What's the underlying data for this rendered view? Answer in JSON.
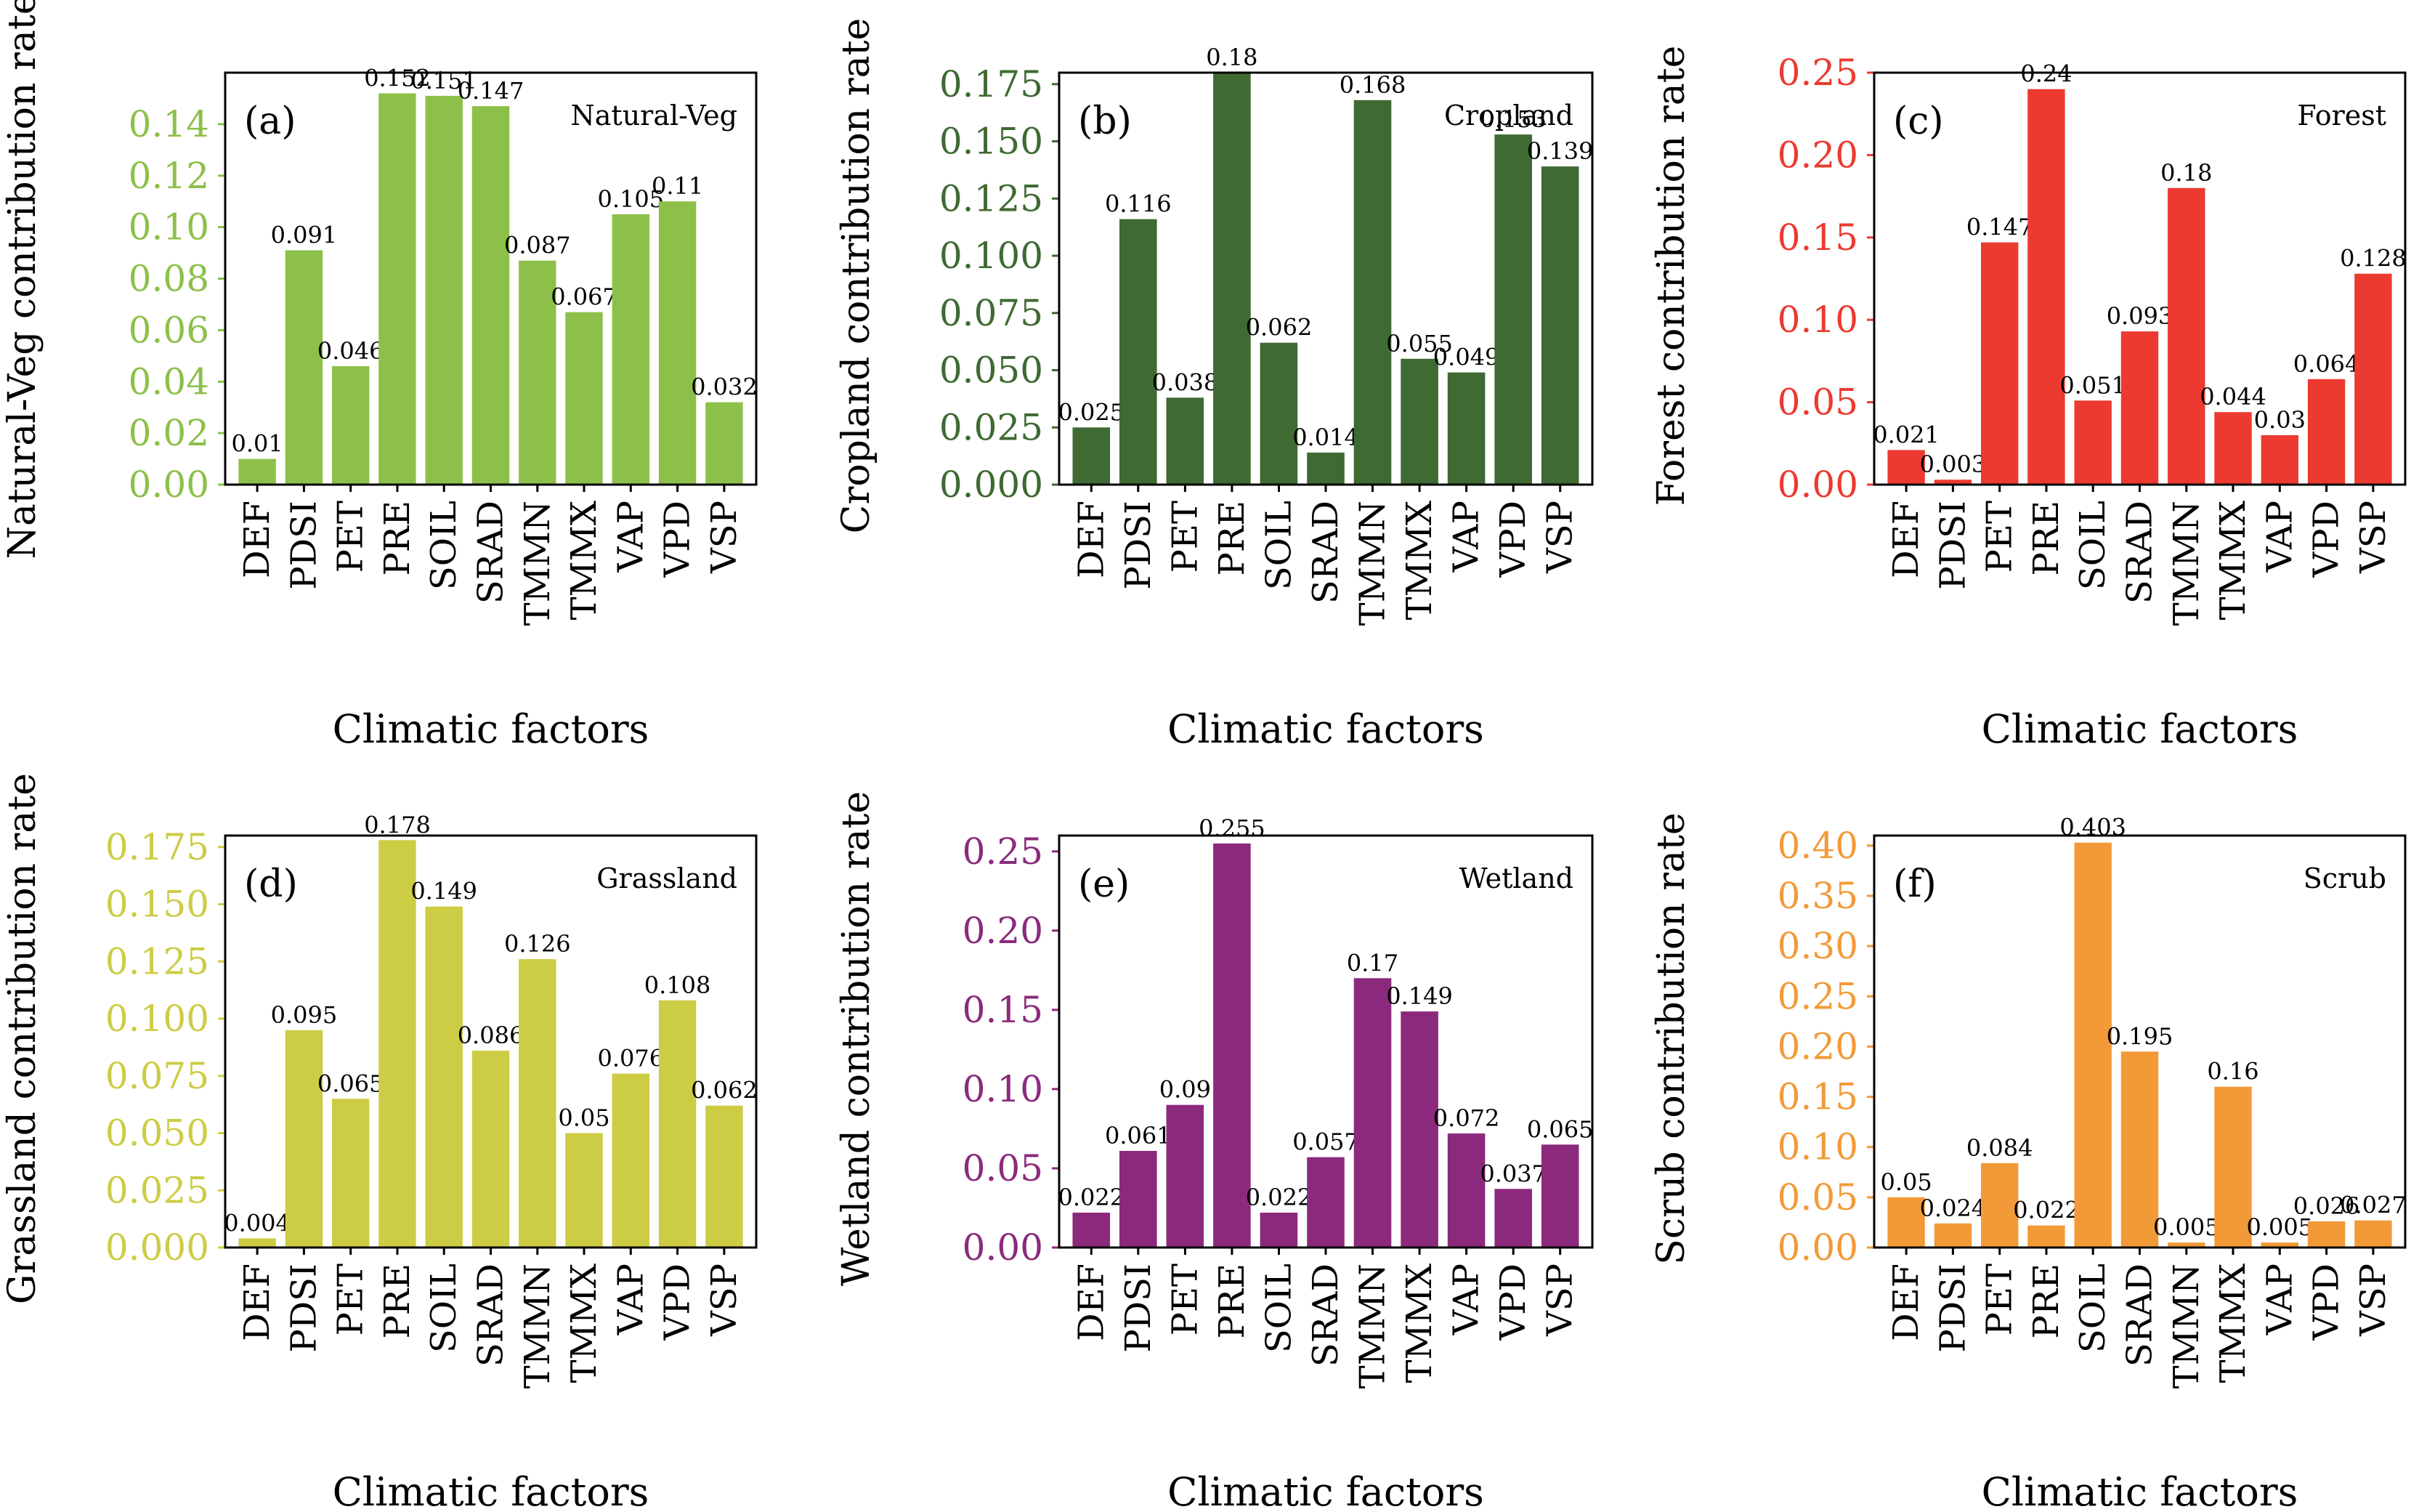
{
  "chart_data": [
    {
      "type": "bar",
      "panel_label": "(a)",
      "legend_text": "Natural-Veg",
      "color": "#8DC04A",
      "categories": [
        "DEF",
        "PDSI",
        "PET",
        "PRE",
        "SOIL",
        "SRAD",
        "TMMN",
        "TMMX",
        "VAP",
        "VPD",
        "VSP"
      ],
      "values": [
        0.01,
        0.091,
        0.046,
        0.152,
        0.151,
        0.147,
        0.087,
        0.067,
        0.105,
        0.11,
        0.032
      ],
      "value_labels": [
        "0.01",
        "0.091",
        "0.046",
        "0.152",
        "0.151",
        "0.147",
        "0.087",
        "0.067",
        "0.105",
        "0.11",
        "0.032"
      ],
      "ylim": [
        0,
        0.16
      ],
      "yticks": [
        "0.00",
        "0.02",
        "0.04",
        "0.06",
        "0.08",
        "0.10",
        "0.12",
        "0.14"
      ],
      "xlabel": "Climatic factors",
      "ylabel": "Natural-Veg contribution rate",
      "legend_position": "top-right"
    },
    {
      "type": "bar",
      "panel_label": "(b)",
      "legend_text": "Cropland",
      "color": "#3F6A32",
      "categories": [
        "DEF",
        "PDSI",
        "PET",
        "PRE",
        "SOIL",
        "SRAD",
        "TMMN",
        "TMMX",
        "VAP",
        "VPD",
        "VSP"
      ],
      "values": [
        0.025,
        0.116,
        0.038,
        0.18,
        0.062,
        0.014,
        0.168,
        0.055,
        0.049,
        0.153,
        0.139
      ],
      "value_labels": [
        "0.025",
        "0.116",
        "0.038",
        "0.18",
        "0.062",
        "0.014",
        "0.168",
        "0.055",
        "0.049",
        "0.153",
        "0.139"
      ],
      "ylim": [
        0,
        0.18
      ],
      "yticks": [
        "0.000",
        "0.025",
        "0.050",
        "0.075",
        "0.100",
        "0.125",
        "0.150",
        "0.175"
      ],
      "xlabel": "Climatic factors",
      "ylabel": "Cropland contribution rate",
      "legend_position": "top-right"
    },
    {
      "type": "bar",
      "panel_label": "(c)",
      "legend_text": "Forest",
      "color": "#EC3A30",
      "categories": [
        "DEF",
        "PDSI",
        "PET",
        "PRE",
        "SOIL",
        "SRAD",
        "TMMN",
        "TMMX",
        "VAP",
        "VPD",
        "VSP"
      ],
      "values": [
        0.021,
        0.003,
        0.147,
        0.24,
        0.051,
        0.093,
        0.18,
        0.044,
        0.03,
        0.064,
        0.128
      ],
      "value_labels": [
        "0.021",
        "0.003",
        "0.147",
        "0.24",
        "0.051",
        "0.093",
        "0.18",
        "0.044",
        "0.03",
        "0.064",
        "0.128"
      ],
      "ylim": [
        0,
        0.25
      ],
      "yticks": [
        "0.00",
        "0.05",
        "0.10",
        "0.15",
        "0.20",
        "0.25"
      ],
      "xlabel": "Climatic factors",
      "ylabel": "Forest contribution rate",
      "legend_position": "top-right"
    },
    {
      "type": "bar",
      "panel_label": "(d)",
      "legend_text": "Grassland",
      "color": "#CDCC45",
      "categories": [
        "DEF",
        "PDSI",
        "PET",
        "PRE",
        "SOIL",
        "SRAD",
        "TMMN",
        "TMMX",
        "VAP",
        "VPD",
        "VSP"
      ],
      "values": [
        0.004,
        0.095,
        0.065,
        0.178,
        0.149,
        0.086,
        0.126,
        0.05,
        0.076,
        0.108,
        0.062
      ],
      "value_labels": [
        "0.004",
        "0.095",
        "0.065",
        "0.178",
        "0.149",
        "0.086",
        "0.126",
        "0.05",
        "0.076",
        "0.108",
        "0.062"
      ],
      "ylim": [
        0,
        0.18
      ],
      "yticks": [
        "0.000",
        "0.025",
        "0.050",
        "0.075",
        "0.100",
        "0.125",
        "0.150",
        "0.175"
      ],
      "xlabel": "Climatic factors",
      "ylabel": "Grassland contribution rate",
      "legend_position": "top-right"
    },
    {
      "type": "bar",
      "panel_label": "(e)",
      "legend_text": "Wetland",
      "color": "#8B2A7D",
      "categories": [
        "DEF",
        "PDSI",
        "PET",
        "PRE",
        "SOIL",
        "SRAD",
        "TMMN",
        "TMMX",
        "VAP",
        "VPD",
        "VSP"
      ],
      "values": [
        0.022,
        0.061,
        0.09,
        0.255,
        0.022,
        0.057,
        0.17,
        0.149,
        0.072,
        0.037,
        0.065
      ],
      "value_labels": [
        "0.022",
        "0.061",
        "0.09",
        "0.255",
        "0.022",
        "0.057",
        "0.17",
        "0.149",
        "0.072",
        "0.037",
        "0.065"
      ],
      "ylim": [
        0,
        0.26
      ],
      "yticks": [
        "0.00",
        "0.05",
        "0.10",
        "0.15",
        "0.20",
        "0.25"
      ],
      "xlabel": "Climatic factors",
      "ylabel": "Wetland contribution rate",
      "legend_position": "top-right"
    },
    {
      "type": "bar",
      "panel_label": "(f)",
      "legend_text": "Scrub",
      "color": "#F29A38",
      "categories": [
        "DEF",
        "PDSI",
        "PET",
        "PRE",
        "SOIL",
        "SRAD",
        "TMMN",
        "TMMX",
        "VAP",
        "VPD",
        "VSP"
      ],
      "values": [
        0.05,
        0.024,
        0.084,
        0.022,
        0.403,
        0.195,
        0.005,
        0.16,
        0.005,
        0.026,
        0.027
      ],
      "value_labels": [
        "0.05",
        "0.024",
        "0.084",
        "0.022",
        "0.403",
        "0.195",
        "0.005",
        "0.16",
        "0.005",
        "0.026",
        "0.027"
      ],
      "ylim": [
        0,
        0.41
      ],
      "yticks": [
        "0.00",
        "0.05",
        "0.10",
        "0.15",
        "0.20",
        "0.25",
        "0.30",
        "0.35",
        "0.40"
      ],
      "xlabel": "Climatic factors",
      "ylabel": "Scrub contribution rate",
      "legend_position": "top-right"
    }
  ]
}
